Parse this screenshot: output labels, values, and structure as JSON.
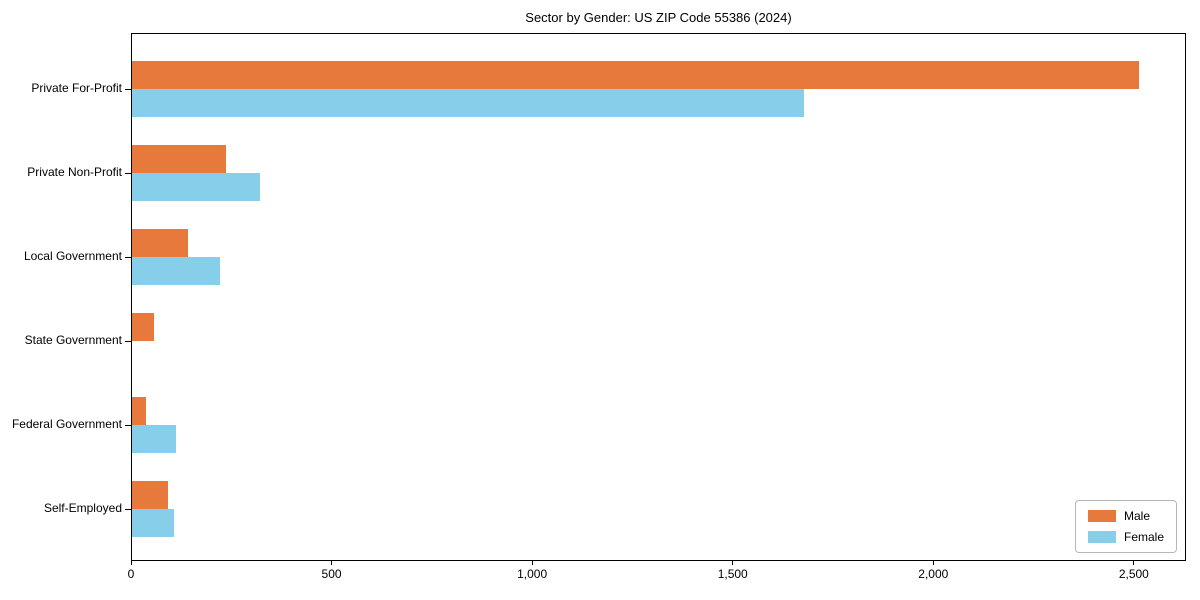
{
  "chart_data": {
    "type": "bar",
    "orientation": "horizontal",
    "title": "Sector by Gender: US ZIP Code 55386 (2024)",
    "categories": [
      "Private For-Profit",
      "Private Non-Profit",
      "Local Government",
      "State Government",
      "Federal Government",
      "Self-Employed"
    ],
    "series": [
      {
        "name": "Male",
        "color": "#e8793c",
        "values": [
          2510,
          235,
          140,
          55,
          35,
          90
        ]
      },
      {
        "name": "Female",
        "color": "#87ceeb",
        "values": [
          1675,
          320,
          220,
          0,
          110,
          105
        ]
      }
    ],
    "xlabel": "",
    "ylabel": "",
    "xlim": [
      0,
      2630
    ],
    "xticks": [
      0,
      500,
      1000,
      1500,
      2000,
      2500
    ],
    "xtick_labels": [
      "0",
      "500",
      "1,000",
      "1,500",
      "2,000",
      "2,500"
    ],
    "grid": false,
    "background_color": "#ffffff",
    "axis_color": "#000000",
    "legend": {
      "position": "lower right",
      "entries": [
        "Male",
        "Female"
      ]
    }
  }
}
